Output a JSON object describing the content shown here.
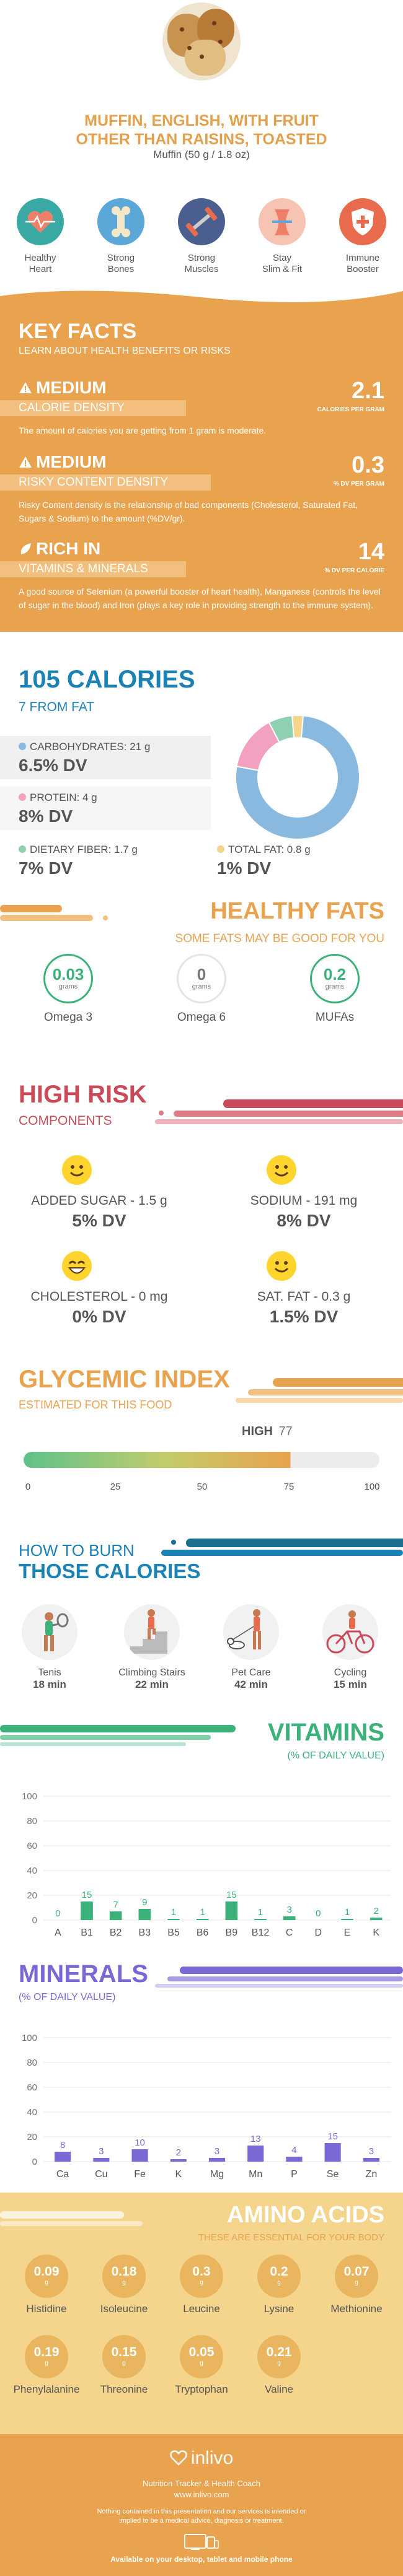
{
  "header": {
    "title_line1": "MUFFIN, ENGLISH, WITH FRUIT",
    "title_line2": "OTHER THAN RAISINS, TOASTED",
    "serving": "Muffin (50 g / 1.8 oz)"
  },
  "benefits": [
    {
      "label1": "Healthy",
      "label2": "Heart",
      "icon": "heart-monitor-icon",
      "color": "#3aa9a3"
    },
    {
      "label1": "Strong",
      "label2": "Bones",
      "icon": "bone-icon",
      "color": "#5aa7d8"
    },
    {
      "label1": "Strong",
      "label2": "Muscles",
      "icon": "dumbbell-icon",
      "color": "#4a5f8f"
    },
    {
      "label1": "Stay",
      "label2": "Slim & Fit",
      "icon": "slim-body-icon",
      "color": "#f07f6a"
    },
    {
      "label1": "Immune",
      "label2": "Booster",
      "icon": "shield-icon",
      "color": "#e96b4d"
    }
  ],
  "key_facts": {
    "title": "KEY FACTS",
    "subtitle": "LEARN ABOUT HEALTH BENEFITS OR RISKS",
    "facts": [
      {
        "level": "MEDIUM",
        "name": "CALORIE DENSITY",
        "value": "2.1",
        "unit": "CALORIES PER GRAM",
        "desc": "The amount of calories you are getting from 1 gram is moderate."
      },
      {
        "level": "MEDIUM",
        "name": "RISKY CONTENT DENSITY",
        "value": "0.3",
        "unit": "% DV PER GRAM",
        "desc": "Risky Content density is the relationship of bad components (Cholesterol, Saturated Fat, Sugars & Sodium) to the amount (%DV/gr)."
      },
      {
        "level": "RICH  IN",
        "name": "VITAMINS & MINERALS",
        "value": "14",
        "unit": "% DV PER CALORIE",
        "desc": "A good source of Selenium (a powerful booster of heart health), Manganese (controls the level of sugar in the blood) and Iron (plays a key role in providing strength to the immune system)."
      }
    ]
  },
  "calories": {
    "title": "105 CALORIES",
    "subtitle": "7 FROM FAT",
    "carbs": {
      "label": "CARBOHYDRATES: 21 g",
      "dv": "6.5% DV",
      "color": "#8ab9e0",
      "grams": 21
    },
    "protein": {
      "label": "PROTEIN: 4 g",
      "dv": "8% DV",
      "color": "#f2a2c0",
      "grams": 4
    },
    "fiber": {
      "label": "DIETARY FIBER: 1.7 g",
      "dv": "7% DV",
      "color": "#8fd0b0",
      "grams": 1.7
    },
    "fat": {
      "label": "TOTAL FAT: 0.8 g",
      "dv": "1% DV",
      "color": "#f5d48c",
      "grams": 0.8
    }
  },
  "healthy_fats": {
    "title": "HEALTHY FATS",
    "subtitle": "SOME FATS MAY BE GOOD FOR YOU",
    "items": [
      {
        "value": "0.03",
        "unit": "grams",
        "name": "Omega 3",
        "active": true
      },
      {
        "value": "0",
        "unit": "grams",
        "name": "Omega 6",
        "active": false
      },
      {
        "value": "0.2",
        "unit": "grams",
        "name": "MUFAs",
        "active": true
      }
    ]
  },
  "high_risk": {
    "title": "HIGH RISK",
    "subtitle": "COMPONENTS",
    "items": [
      {
        "label": "ADDED SUGAR - 1.5 g",
        "dv": "5% DV"
      },
      {
        "label": "SODIUM - 191 mg",
        "dv": "8% DV"
      },
      {
        "label": "CHOLESTEROL - 0 mg",
        "dv": "0% DV"
      },
      {
        "label": "SAT. FAT - 0.3 g",
        "dv": "1.5% DV"
      }
    ]
  },
  "glycemic": {
    "title": "GLYCEMIC INDEX",
    "subtitle": "ESTIMATED FOR THIS FOOD",
    "level": "HIGH",
    "value": "77",
    "value_num": 77,
    "ticks": [
      "0",
      "25",
      "50",
      "75",
      "100"
    ]
  },
  "burn": {
    "title1": "HOW TO BURN",
    "title2": "THOSE CALORIES",
    "activities": [
      {
        "name": "Tenis",
        "minutes": "18 min",
        "icon": "tennis-icon"
      },
      {
        "name": "Climbing Stairs",
        "minutes": "22 min",
        "icon": "stairs-icon"
      },
      {
        "name": "Pet Care",
        "minutes": "42 min",
        "icon": "dog-walking-icon"
      },
      {
        "name": "Cycling",
        "minutes": "15 min",
        "icon": "cycling-icon"
      }
    ]
  },
  "vitamins": {
    "title": "VITAMINS",
    "subtitle": "(% OF DAILY VALUE)"
  },
  "minerals": {
    "title": "MINERALS",
    "subtitle": "(% OF DAILY VALUE)"
  },
  "amino_acids": {
    "title": "AMINO ACIDS",
    "subtitle": "THESE ARE ESSENTIAL FOR YOUR BODY",
    "items": [
      {
        "value": "0.09",
        "unit": "g",
        "name": "Histidine"
      },
      {
        "value": "0.18",
        "unit": "g",
        "name": "Isoleucine"
      },
      {
        "value": "0.3",
        "unit": "g",
        "name": "Leucine"
      },
      {
        "value": "0.2",
        "unit": "g",
        "name": "Lysine"
      },
      {
        "value": "0.07",
        "unit": "g",
        "name": "Methionine"
      },
      {
        "value": "0.19",
        "unit": "g",
        "name": "Phenylalanine"
      },
      {
        "value": "0.15",
        "unit": "g",
        "name": "Threonine"
      },
      {
        "value": "0.05",
        "unit": "g",
        "name": "Tryptophan"
      },
      {
        "value": "0.21",
        "unit": "g",
        "name": "Valine"
      }
    ]
  },
  "footer": {
    "brand": "inlivo",
    "tagline": "Nutrition Tracker & Health Coach",
    "url": "www.inlivo.com",
    "disclaimer": "Nothing contained in this presentation and our services is intended or implied to be a medical advice, diagnosis or treatment.",
    "devices": "Available on your desktop, tablet and mobile phone"
  },
  "chart_data": [
    {
      "type": "bar",
      "title": "VITAMINS",
      "subtitle": "(% OF DAILY VALUE)",
      "categories": [
        "A",
        "B1",
        "B2",
        "B3",
        "B5",
        "B6",
        "B9",
        "B12",
        "C",
        "D",
        "E",
        "K"
      ],
      "values": [
        0,
        15,
        7,
        9,
        1,
        1,
        15,
        1,
        3,
        0,
        1,
        2
      ],
      "ylim": [
        0,
        100
      ],
      "yticks": [
        "0",
        "20",
        "40",
        "60",
        "80",
        "100"
      ],
      "grid": true,
      "color": "#3bb27a"
    },
    {
      "type": "bar",
      "title": "MINERALS",
      "subtitle": "(% OF DAILY VALUE)",
      "categories": [
        "Ca",
        "Cu",
        "Fe",
        "K",
        "Mg",
        "Mn",
        "P",
        "Se",
        "Zn"
      ],
      "values": [
        8,
        3,
        10,
        2,
        3,
        13,
        4,
        15,
        3
      ],
      "ylim": [
        0,
        100
      ],
      "yticks": [
        "0",
        "20",
        "40",
        "60",
        "80",
        "100"
      ],
      "grid": true,
      "color": "#7b68d6"
    },
    {
      "type": "pie",
      "categories": [
        "CARBOHYDRATES",
        "PROTEIN",
        "DIETARY FIBER",
        "TOTAL FAT"
      ],
      "values": [
        21,
        4,
        1.7,
        0.8
      ],
      "colors": [
        "#8ab9e0",
        "#f2a2c0",
        "#8fd0b0",
        "#f5d48c"
      ]
    }
  ]
}
